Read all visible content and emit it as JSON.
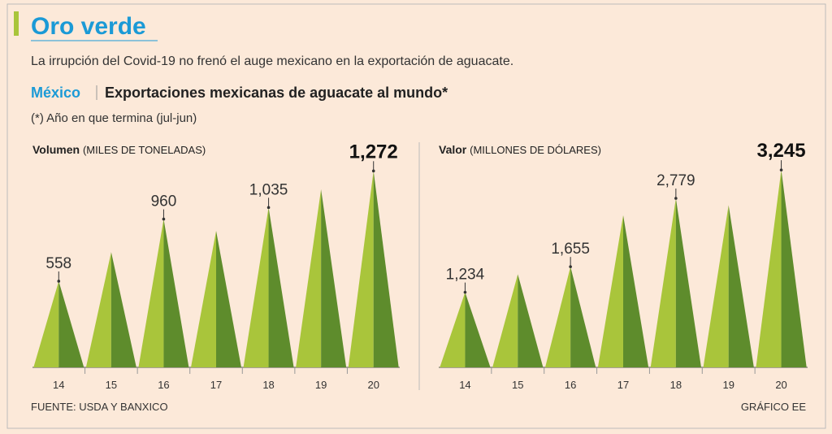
{
  "header": {
    "title": "Oro verde",
    "subtitle": "La irrupción del Covid-19 no frenó el auge mexicano en la exportación de aguacate.",
    "section": "México",
    "heading": "Exportaciones mexicanas de aguacate al mundo*",
    "note": "(*) Año en que termina (jul-jun)"
  },
  "chart_data": [
    {
      "type": "triangle",
      "title": "Volumen",
      "unit": "(MILES DE TONELADAS)",
      "categories": [
        "14",
        "15",
        "16",
        "17",
        "18",
        "19",
        "20"
      ],
      "values": [
        558,
        747,
        960,
        884,
        1035,
        1153,
        1272
      ],
      "value_labels": [
        "558",
        null,
        "960",
        null,
        "1,035",
        null,
        "1,272"
      ],
      "colors": [
        "#a9c53b",
        "#5e8c2c"
      ],
      "ylim": [
        0,
        1300
      ]
    },
    {
      "type": "triangle",
      "title": "Valor",
      "unit": "(MILLONES DE DÓLARES)",
      "categories": [
        "14",
        "15",
        "16",
        "17",
        "18",
        "19",
        "20"
      ],
      "values": [
        1234,
        1532,
        1655,
        2500,
        2779,
        2667,
        3245
      ],
      "value_labels": [
        "1,234",
        null,
        "1,655",
        null,
        "2,779",
        null,
        "3,245"
      ],
      "colors": [
        "#a9c53b",
        "#5e8c2c"
      ],
      "ylim": [
        0,
        3300
      ]
    }
  ],
  "footer": {
    "source": "FUENTE: USDA Y BANXICO",
    "credit": "GRÁFICO EE"
  }
}
